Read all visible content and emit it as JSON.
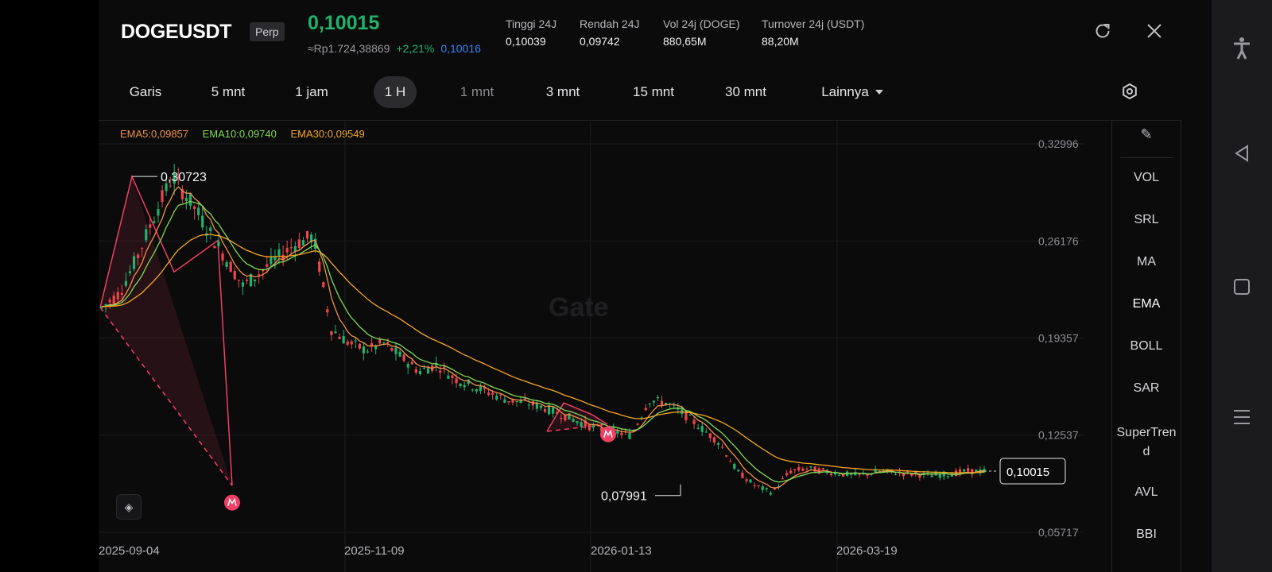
{
  "header": {
    "symbol": "DOGEUSDT",
    "badge": "Perp",
    "last_price": "0,10015",
    "idr_price": "≈Rp1.724,38869",
    "change": "+2,21%",
    "mark_price": "0,10016",
    "stats": [
      {
        "label": "Tinggi 24J",
        "value": "0,10039"
      },
      {
        "label": "Rendah 24J",
        "value": "0,09742"
      },
      {
        "label": "Vol 24j (DOGE)",
        "value": "880,65M"
      },
      {
        "label": "Turnover 24j (USDT)",
        "value": "88,20M"
      }
    ],
    "icons": [
      "refresh-icon",
      "close-icon"
    ]
  },
  "tabs": [
    {
      "label": "Garis"
    },
    {
      "label": "5 mnt"
    },
    {
      "label": "1 jam"
    },
    {
      "label": "1 H",
      "active": true
    },
    {
      "label": "1 mnt",
      "dim": true
    },
    {
      "label": "3 mnt"
    },
    {
      "label": "15 mnt"
    },
    {
      "label": "30 mnt"
    },
    {
      "label": "Lainnya"
    }
  ],
  "ema_legend": {
    "ema5": "EMA5:0,09857",
    "ema10": "EMA10:0,09740",
    "ema30": "EMA30:0,09549"
  },
  "indicators": [
    "VOL",
    "SRL",
    "MA",
    "EMA",
    "BOLL",
    "SAR",
    "SuperTrend",
    "AVL",
    "BBI"
  ],
  "active_indicator": "EMA",
  "watermark": "Gate",
  "colors": {
    "up": "#20b26c",
    "down": "#ef454a",
    "ema5": "#f6b94c",
    "ema10": "#2ebd6e",
    "ema30": "#f5a623",
    "pattern": "#ef3f64"
  },
  "chart_data": {
    "type": "candlestick",
    "y_ticks": [
      "0,32996",
      "0,26176",
      "0,19357",
      "0,12537",
      "0,05717"
    ],
    "x_ticks": [
      "2025-09-04",
      "2025-11-09",
      "2026-01-13",
      "2026-03-19"
    ],
    "ylim": [
      0.05717,
      0.32996
    ],
    "annotations": {
      "high_label": "0,30723",
      "low_label": "0,07991",
      "last_price_label": "0,10015"
    },
    "approx_close_series": [
      0.215,
      0.225,
      0.25,
      0.28,
      0.307,
      0.29,
      0.27,
      0.25,
      0.23,
      0.24,
      0.25,
      0.26,
      0.265,
      0.2,
      0.19,
      0.185,
      0.19,
      0.18,
      0.17,
      0.175,
      0.165,
      0.16,
      0.155,
      0.15,
      0.148,
      0.145,
      0.14,
      0.135,
      0.13,
      0.128,
      0.125,
      0.15,
      0.148,
      0.14,
      0.13,
      0.12,
      0.1,
      0.09,
      0.085,
      0.1,
      0.102,
      0.1,
      0.098,
      0.097,
      0.1,
      0.099,
      0.098,
      0.097,
      0.098,
      0.1,
      0.1
    ],
    "legend": "top-left"
  }
}
